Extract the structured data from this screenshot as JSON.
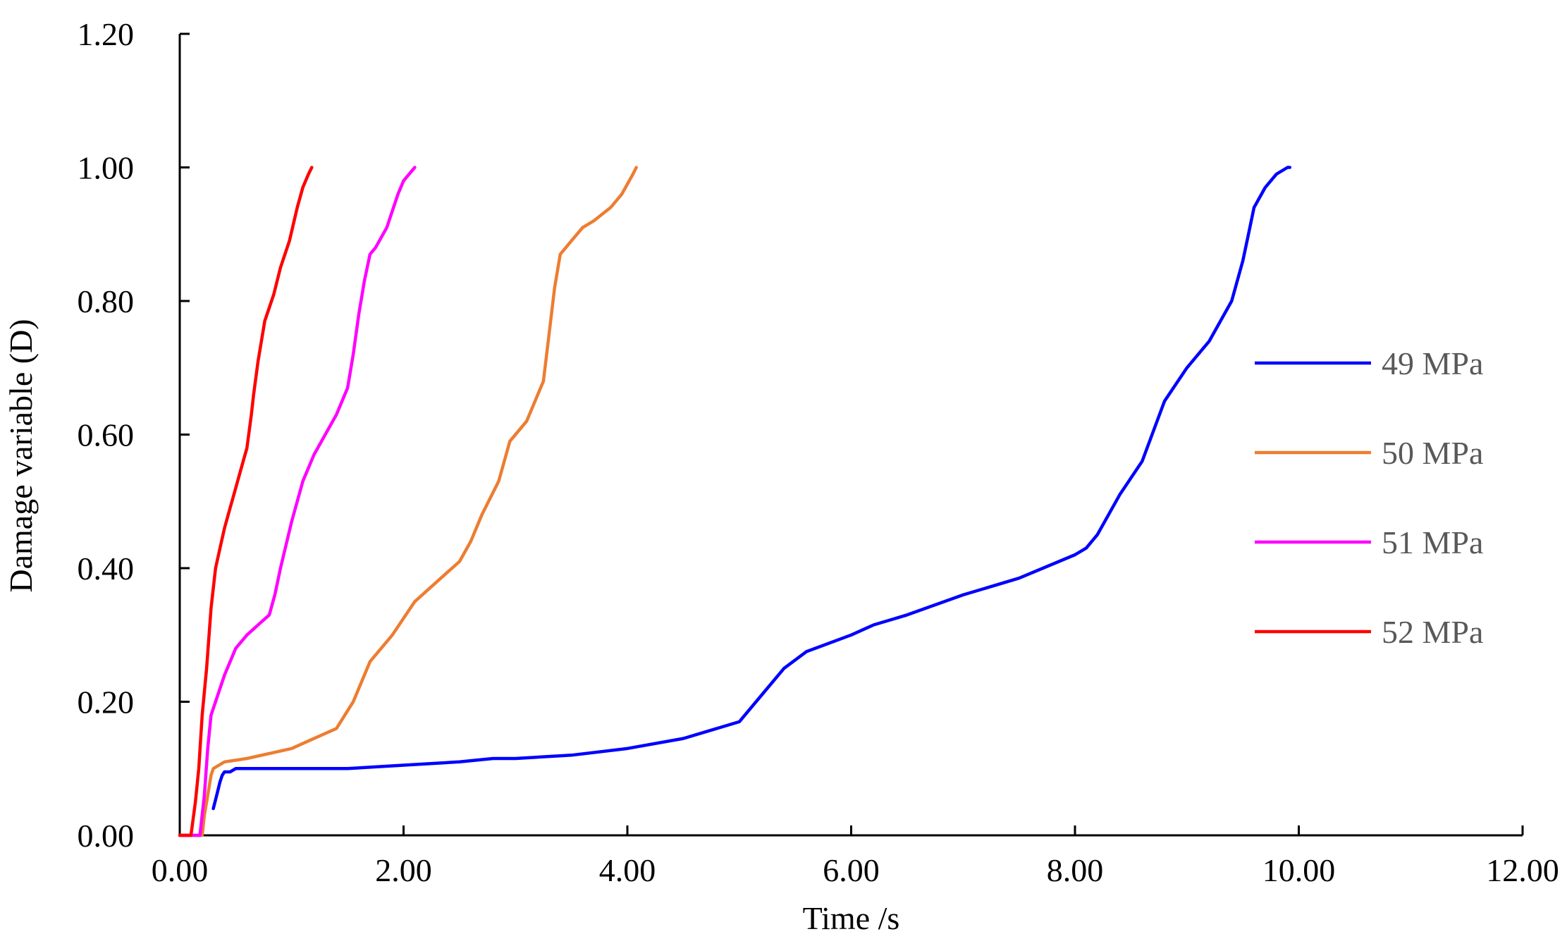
{
  "chart_data": {
    "type": "line",
    "title": "",
    "xlabel": "Time /s",
    "ylabel": "Damage variable (D)",
    "xlim": [
      0,
      12
    ],
    "ylim": [
      0,
      1.2
    ],
    "x_ticks": [
      "0.00",
      "2.00",
      "4.00",
      "6.00",
      "8.00",
      "10.00",
      "12.00"
    ],
    "y_ticks": [
      "0.00",
      "0.20",
      "0.40",
      "0.60",
      "0.80",
      "1.00",
      "1.20"
    ],
    "grid": false,
    "legend_position": "right",
    "series": [
      {
        "name": "49 MPa",
        "color": "#0000ff",
        "x": [
          0.3,
          0.33,
          0.36,
          0.38,
          0.4,
          0.42,
          0.45,
          0.5,
          1.0,
          1.5,
          2.0,
          2.5,
          2.8,
          3.0,
          3.5,
          4.0,
          4.5,
          5.0,
          5.2,
          5.4,
          5.6,
          6.0,
          6.2,
          6.5,
          7.0,
          7.5,
          8.0,
          8.1,
          8.2,
          8.4,
          8.6,
          8.8,
          9.0,
          9.2,
          9.4,
          9.5,
          9.55,
          9.6,
          9.7,
          9.8,
          9.9,
          9.92
        ],
        "y": [
          0.04,
          0.06,
          0.08,
          0.09,
          0.095,
          0.095,
          0.095,
          0.1,
          0.1,
          0.1,
          0.105,
          0.11,
          0.115,
          0.115,
          0.12,
          0.13,
          0.145,
          0.17,
          0.21,
          0.25,
          0.275,
          0.3,
          0.315,
          0.33,
          0.36,
          0.385,
          0.42,
          0.43,
          0.45,
          0.51,
          0.56,
          0.65,
          0.7,
          0.74,
          0.8,
          0.86,
          0.9,
          0.94,
          0.97,
          0.99,
          1.0,
          1.0
        ]
      },
      {
        "name": "50 MPa",
        "color": "#ed7d31",
        "x": [
          0.0,
          0.2,
          0.22,
          0.25,
          0.28,
          0.3,
          0.35,
          0.4,
          0.6,
          1.0,
          1.2,
          1.4,
          1.55,
          1.7,
          1.9,
          2.1,
          2.3,
          2.5,
          2.6,
          2.7,
          2.85,
          2.95,
          3.1,
          3.25,
          3.3,
          3.35,
          3.4,
          3.5,
          3.6,
          3.7,
          3.85,
          3.95,
          4.05,
          4.08
        ],
        "y": [
          0.0,
          0.0,
          0.03,
          0.06,
          0.09,
          0.1,
          0.105,
          0.11,
          0.115,
          0.13,
          0.145,
          0.16,
          0.2,
          0.26,
          0.3,
          0.35,
          0.38,
          0.41,
          0.44,
          0.48,
          0.53,
          0.59,
          0.62,
          0.68,
          0.75,
          0.82,
          0.87,
          0.89,
          0.91,
          0.92,
          0.94,
          0.96,
          0.99,
          1.0
        ]
      },
      {
        "name": "51 MPa",
        "color": "#ff00ff",
        "x": [
          0.0,
          0.18,
          0.22,
          0.25,
          0.28,
          0.32,
          0.4,
          0.5,
          0.6,
          0.7,
          0.8,
          0.85,
          0.9,
          1.0,
          1.1,
          1.2,
          1.3,
          1.4,
          1.5,
          1.55,
          1.6,
          1.65,
          1.7,
          1.75,
          1.85,
          1.95,
          2.0,
          2.05,
          2.1
        ],
        "y": [
          0.0,
          0.0,
          0.06,
          0.13,
          0.18,
          0.2,
          0.24,
          0.28,
          0.3,
          0.315,
          0.33,
          0.36,
          0.4,
          0.47,
          0.53,
          0.57,
          0.6,
          0.63,
          0.67,
          0.72,
          0.78,
          0.83,
          0.87,
          0.88,
          0.91,
          0.96,
          0.98,
          0.99,
          1.0
        ]
      },
      {
        "name": "52 MPa",
        "color": "#ff0000",
        "x": [
          0.0,
          0.1,
          0.14,
          0.17,
          0.2,
          0.24,
          0.28,
          0.32,
          0.36,
          0.4,
          0.45,
          0.5,
          0.55,
          0.6,
          0.64,
          0.66,
          0.7,
          0.76,
          0.84,
          0.9,
          0.98,
          1.05,
          1.1,
          1.15,
          1.18
        ],
        "y": [
          0.0,
          0.0,
          0.05,
          0.1,
          0.18,
          0.25,
          0.34,
          0.4,
          0.43,
          0.46,
          0.49,
          0.52,
          0.55,
          0.58,
          0.63,
          0.66,
          0.71,
          0.77,
          0.81,
          0.85,
          0.89,
          0.94,
          0.97,
          0.99,
          1.0
        ]
      }
    ]
  }
}
